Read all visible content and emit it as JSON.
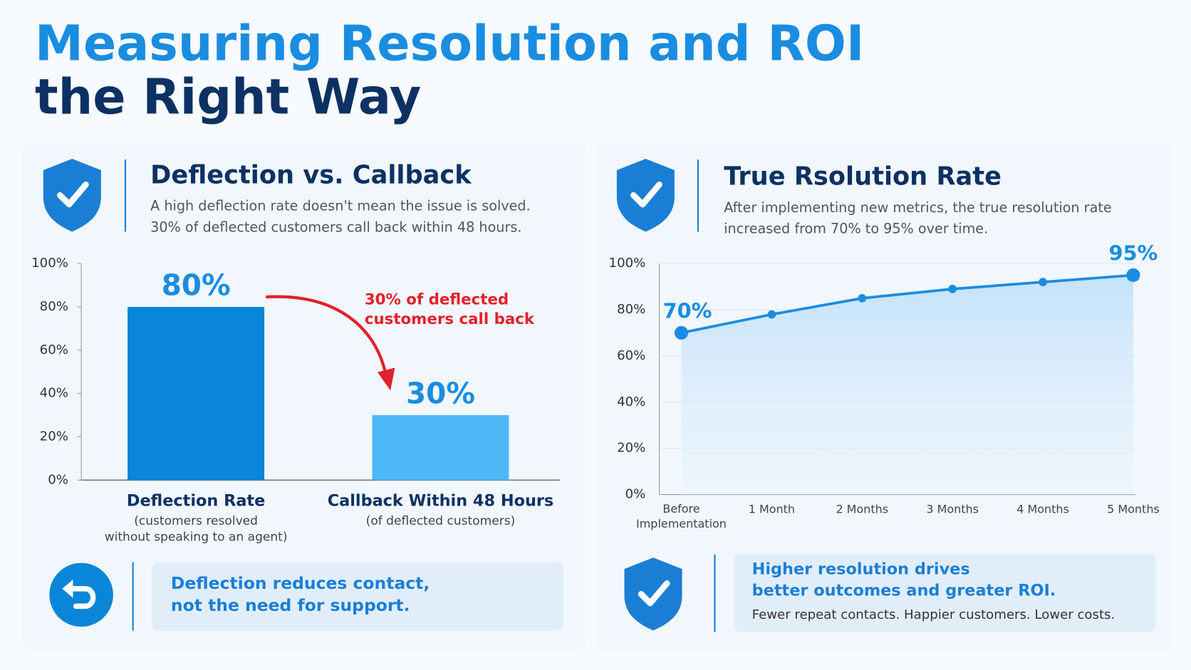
{
  "title": {
    "line1": "Measuring Resolution and ROI",
    "line2": "the Right Way"
  },
  "chart_data": [
    {
      "type": "bar",
      "title": "Deflection vs. Callback",
      "subtitle": [
        "A high deflection rate doesn't mean the issue is solved.",
        "30% of deflected customers call back within 48 hours."
      ],
      "categories": [
        "Deflection Rate",
        "Callback Within 48 Hours"
      ],
      "category_notes": [
        [
          "(customers resolved",
          "without speaking to an agent)"
        ],
        [
          "(of deflected customers)"
        ]
      ],
      "values": [
        80,
        30
      ],
      "value_labels": [
        "80%",
        "30%"
      ],
      "colors": [
        "#0a86d8",
        "#4cb8f5"
      ],
      "ylim": [
        0,
        100
      ],
      "yticks": [
        {
          "value": 0,
          "label": "0%"
        },
        {
          "value": 20,
          "label": "20%"
        },
        {
          "value": 40,
          "label": "40%"
        },
        {
          "value": 60,
          "label": "60%"
        },
        {
          "value": 80,
          "label": "80%"
        },
        {
          "value": 100,
          "label": "100%"
        }
      ],
      "grid": false,
      "annotation": [
        "30% of deflected",
        "customers call back"
      ],
      "callout": [
        "Deflection reduces contact,",
        "not the need for support."
      ]
    },
    {
      "type": "line",
      "title": "True Rsolution Rate",
      "subtitle": [
        "After implementing new metrics, the true resolution rate",
        "increased from 70% to 95% over time."
      ],
      "categories": [
        "Before Implementation",
        "1 Month",
        "2 Months",
        "3 Months",
        "4 Months",
        "5 Months"
      ],
      "values": [
        70,
        78,
        85,
        89,
        92,
        95
      ],
      "value_labels": [
        "70%",
        null,
        null,
        null,
        null,
        "95%"
      ],
      "color": "#1a8de0",
      "ylim": [
        0,
        100
      ],
      "yticks": [
        {
          "value": 0,
          "label": "0%"
        },
        {
          "value": 20,
          "label": "20%"
        },
        {
          "value": 40,
          "label": "40%"
        },
        {
          "value": 60,
          "label": "60%"
        },
        {
          "value": 80,
          "label": "80%"
        },
        {
          "value": 100,
          "label": "100%"
        }
      ],
      "grid": true,
      "callout": {
        "heading": [
          "Higher resolution drives",
          "better outcomes and greater ROI."
        ],
        "text": "Fewer repeat contacts. Happier customers. Lower costs."
      }
    }
  ]
}
